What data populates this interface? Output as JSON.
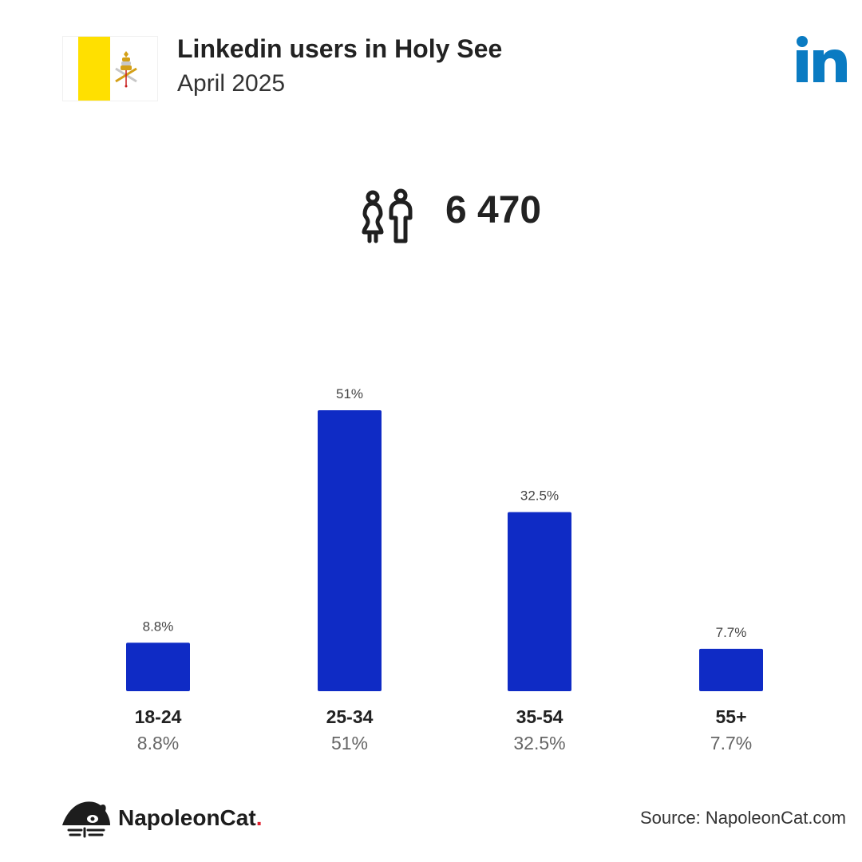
{
  "header": {
    "title": "Linkedin users in Holy See",
    "subtitle": "April 2025"
  },
  "summary": {
    "total_users": "6 470",
    "icon": "users-icon"
  },
  "logos": {
    "flag": "holy-see-flag-icon",
    "platform": "linkedin-icon"
  },
  "colors": {
    "bar": "#0f2bc5",
    "linkedin": "#0a7bc2",
    "flag_yellow": "#ffe000",
    "text": "#222222"
  },
  "chart_data": {
    "type": "bar",
    "categories": [
      "18-24",
      "25-34",
      "35-54",
      "55+"
    ],
    "values": [
      8.8,
      51,
      32.5,
      7.7
    ],
    "value_labels": [
      "8.8%",
      "51%",
      "32.5%",
      "7.7%"
    ],
    "ylim": [
      0,
      51
    ],
    "grid": false,
    "legend": "none"
  },
  "footer": {
    "brand_name": "NapoleonCat",
    "brand_dot": ".",
    "source": "Source: NapoleonCat.com"
  }
}
